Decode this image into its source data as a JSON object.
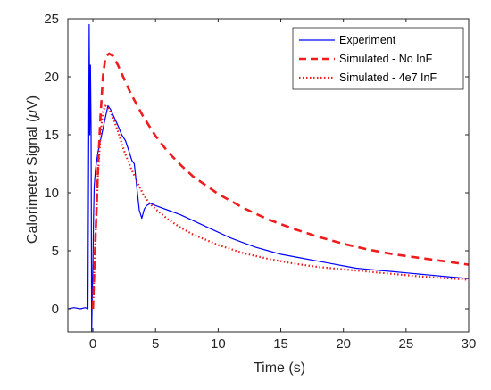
{
  "chart_data": {
    "type": "line",
    "title": "",
    "xlabel": "Time (s)",
    "ylabel_main": "Calorimeter Signal (",
    "ylabel_mu": "μ",
    "ylabel_end": "V)",
    "xlim": [
      -2,
      30
    ],
    "ylim": [
      -2,
      25
    ],
    "xticks": [
      0,
      5,
      10,
      15,
      20,
      25,
      30
    ],
    "yticks": [
      0,
      5,
      10,
      15,
      20,
      25
    ],
    "grid": false,
    "legend_position": "top-right",
    "series": [
      {
        "name": "Experiment",
        "color": "#0000ff",
        "style": "solid",
        "x": [
          -2.0,
          -1.5,
          -1.0,
          -0.6,
          -0.4,
          -0.3,
          -0.25,
          -0.2,
          -0.15,
          -0.1,
          -0.05,
          0.0,
          0.05,
          0.1,
          0.2,
          0.4,
          0.6,
          0.8,
          1.0,
          1.2,
          1.4,
          1.7,
          2.0,
          2.3,
          2.6,
          2.9,
          3.1,
          3.3,
          3.5,
          3.7,
          3.9,
          4.1,
          4.3,
          4.6,
          5.0,
          5.5,
          6.0,
          7.0,
          8.0,
          9.0,
          10.0,
          11.0,
          12.0,
          13.0,
          14.0,
          15.0,
          16.0,
          17.0,
          18.0,
          19.0,
          20.0,
          21.0,
          22.0,
          23.0,
          24.0,
          25.0,
          26.0,
          27.0,
          28.0,
          29.0,
          30.0
        ],
        "y": [
          0.0,
          0.1,
          0.0,
          0.1,
          0.0,
          24.5,
          15.0,
          21.0,
          15.5,
          -2.0,
          1.5,
          4.0,
          8.0,
          10.5,
          12.0,
          13.5,
          14.5,
          15.5,
          16.5,
          17.5,
          17.2,
          16.5,
          15.8,
          15.0,
          14.5,
          13.5,
          12.8,
          12.5,
          10.5,
          8.5,
          7.8,
          8.6,
          8.9,
          9.1,
          8.9,
          8.7,
          8.5,
          8.1,
          7.6,
          7.1,
          6.6,
          6.1,
          5.7,
          5.3,
          5.0,
          4.7,
          4.5,
          4.3,
          4.1,
          3.9,
          3.7,
          3.5,
          3.4,
          3.3,
          3.2,
          3.1,
          3.0,
          2.9,
          2.8,
          2.7,
          2.6
        ]
      },
      {
        "name": "Simulated - No InF",
        "color": "#ee1c1c",
        "style": "dashed",
        "x": [
          0.0,
          0.2,
          0.4,
          0.6,
          0.8,
          1.0,
          1.3,
          1.6,
          2.0,
          2.5,
          3.0,
          4.0,
          5.0,
          6.0,
          7.0,
          8.0,
          10.0,
          12.0,
          14.0,
          16.0,
          18.0,
          20.0,
          22.0,
          24.0,
          26.0,
          28.0,
          30.0
        ],
        "y": [
          0.0,
          6.0,
          12.0,
          16.5,
          20.0,
          21.7,
          22.0,
          21.8,
          21.0,
          19.8,
          18.6,
          16.6,
          14.9,
          13.5,
          12.4,
          11.4,
          9.9,
          8.7,
          7.7,
          6.9,
          6.2,
          5.6,
          5.1,
          4.7,
          4.4,
          4.1,
          3.8
        ]
      },
      {
        "name": "Simulated - 4e7 InF",
        "color": "#ee1c1c",
        "style": "dotted",
        "x": [
          0.0,
          0.2,
          0.4,
          0.6,
          0.8,
          1.0,
          1.3,
          1.6,
          2.0,
          2.5,
          3.0,
          3.5,
          4.0,
          4.5,
          5.0,
          6.0,
          7.0,
          8.0,
          10.0,
          12.0,
          14.0,
          16.0,
          18.0,
          20.0,
          22.0,
          24.0,
          26.0,
          28.0,
          30.0
        ],
        "y": [
          0.0,
          6.0,
          11.5,
          15.0,
          17.0,
          17.5,
          17.2,
          16.5,
          15.3,
          13.6,
          12.2,
          11.0,
          9.9,
          9.1,
          8.6,
          7.7,
          7.0,
          6.4,
          5.5,
          4.8,
          4.3,
          3.9,
          3.6,
          3.4,
          3.2,
          3.0,
          2.8,
          2.65,
          2.5
        ]
      }
    ]
  }
}
